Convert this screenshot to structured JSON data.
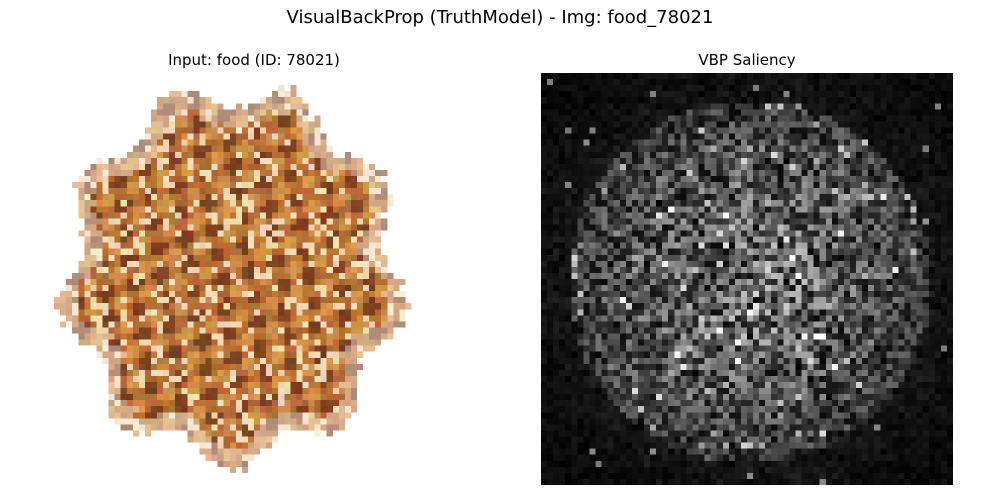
{
  "figure": {
    "suptitle": "VisualBackProp (TruthModel) - Img: food_78021"
  },
  "panels": [
    {
      "title": "Input: food (ID: 78021)",
      "content": "pixelated photo of a pineapple top, brown and tan tones on white background"
    },
    {
      "title": "VBP Saliency",
      "content": "grayscale noisy saliency map, brighter speckles concentrated in a central circular region",
      "colormap": "gray"
    }
  ],
  "colors": {
    "background": "#ffffff",
    "saliency_background": "#0b0b0b"
  }
}
